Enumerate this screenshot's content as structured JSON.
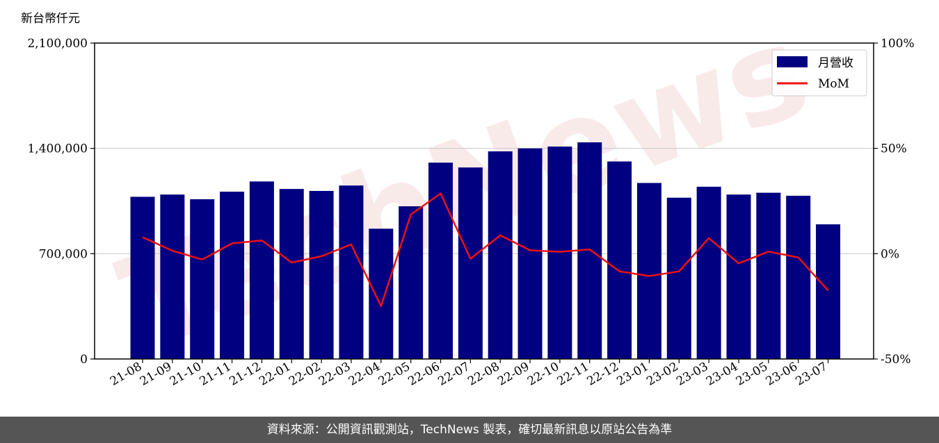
{
  "footer": {
    "text": "資料來源：公開資訊觀測站，TechNews 製表，確切最新訊息以原站公告為準"
  },
  "watermark": {
    "text": "TechNews"
  },
  "colors": {
    "bar": "#000080",
    "line": "#ee1111",
    "footer_bg": "#555555"
  },
  "chart_data": {
    "type": "bar",
    "unit_label": "新台幣仟元",
    "categories": [
      "21-08",
      "21-09",
      "21-10",
      "21-11",
      "21-12",
      "22-01",
      "22-02",
      "22-03",
      "22-04",
      "22-05",
      "22-06",
      "22-07",
      "22-08",
      "22-09",
      "22-10",
      "22-11",
      "22-12",
      "23-01",
      "23-02",
      "23-03",
      "23-04",
      "23-05",
      "23-06",
      "23-07"
    ],
    "series": [
      {
        "name": "月營收",
        "type": "bar",
        "axis": "left",
        "values": [
          1078000,
          1093000,
          1062000,
          1112000,
          1180000,
          1130000,
          1117000,
          1153000,
          866000,
          1015000,
          1305000,
          1273000,
          1380000,
          1400000,
          1412000,
          1440000,
          1313000,
          1170000,
          1072000,
          1145000,
          1093000,
          1105000,
          1085000,
          895000
        ]
      },
      {
        "name": "MoM",
        "type": "line",
        "axis": "right",
        "values": [
          7.8,
          1.4,
          -2.8,
          4.9,
          6.3,
          -4.2,
          -1.2,
          4.4,
          -24.9,
          18.6,
          28.6,
          -2.4,
          8.7,
          1.6,
          0.9,
          2.0,
          -8.4,
          -10.6,
          -8.4,
          7.4,
          -4.6,
          1.0,
          -1.8,
          -17.5
        ]
      }
    ],
    "left_axis": {
      "range": [
        0,
        2100000
      ],
      "ticks": [
        0,
        700000,
        1400000,
        2100000
      ],
      "tick_labels": [
        "0",
        "700,000",
        "1,400,000",
        "2,100,000"
      ]
    },
    "right_axis": {
      "range": [
        -50,
        100
      ],
      "ticks": [
        -50,
        0,
        50,
        100
      ],
      "tick_labels": [
        "-50%",
        "0%",
        "50%",
        "100%"
      ]
    },
    "grid": "horizontal at left-axis ticks",
    "legend": "top-right"
  }
}
